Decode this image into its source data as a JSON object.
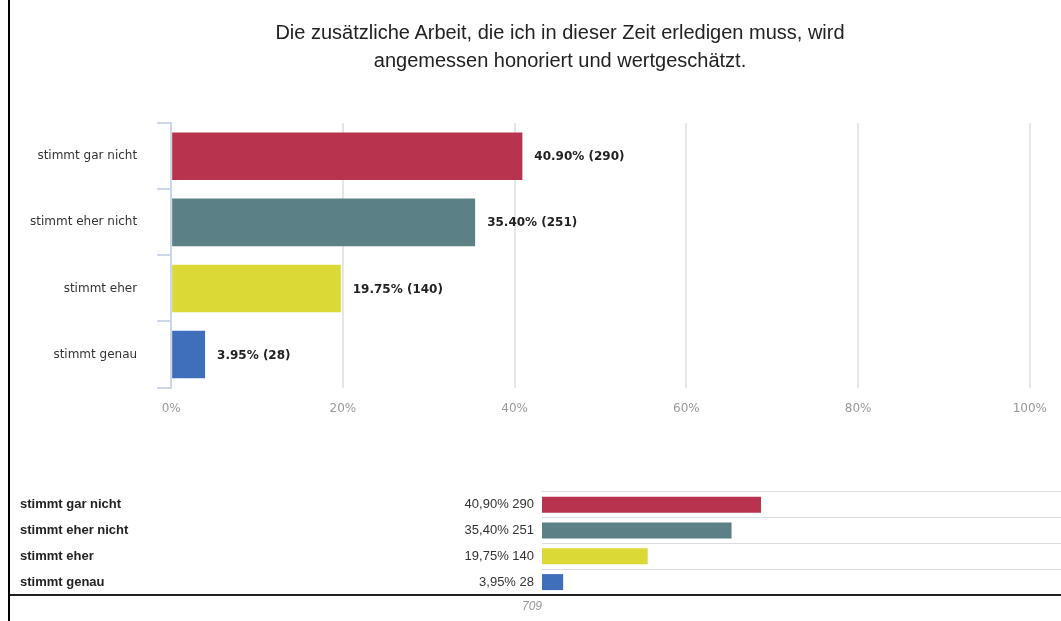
{
  "chart_data": [
    {
      "type": "bar",
      "orientation": "horizontal",
      "title": "Die zusätzliche Arbeit, die ich in dieser Zeit erledigen muss, wird angemessen honoriert und wertgeschätzt.",
      "categories": [
        "stimmt gar nicht",
        "stimmt eher nicht",
        "stimmt eher",
        "stimmt genau"
      ],
      "values": [
        40.9,
        35.4,
        19.75,
        3.95
      ],
      "colors": [
        "#b8344e",
        "#5b8085",
        "#dbd935",
        "#3f6fba"
      ],
      "value_labels": [
        "40.90% (290)",
        "35.40% (251)",
        "19.75% (140)",
        "3.95% (28)"
      ],
      "xlim": [
        0,
        100
      ],
      "xticks": [
        {
          "value": 0,
          "label": "0%"
        },
        {
          "value": 20,
          "label": "20%"
        },
        {
          "value": 40,
          "label": "40%"
        },
        {
          "value": 60,
          "label": "60%"
        },
        {
          "value": 80,
          "label": "80%"
        },
        {
          "value": 100,
          "label": "100%"
        }
      ],
      "grid": "x",
      "legend": false
    },
    {
      "type": "bar",
      "orientation": "horizontal",
      "categories": [
        "stimmt gar nicht",
        "stimmt eher nicht",
        "stimmt eher",
        "stimmt genau"
      ],
      "values": [
        290,
        251,
        140,
        28
      ],
      "colors": [
        "#b8344e",
        "#5b8085",
        "#dbd935",
        "#3f6fba"
      ],
      "value_labels": [
        "40,90% 290",
        "35,40% 251",
        "19,75% 140",
        "3,95% 28"
      ],
      "annotations": [
        "709"
      ],
      "grid": "y",
      "legend": false
    }
  ]
}
